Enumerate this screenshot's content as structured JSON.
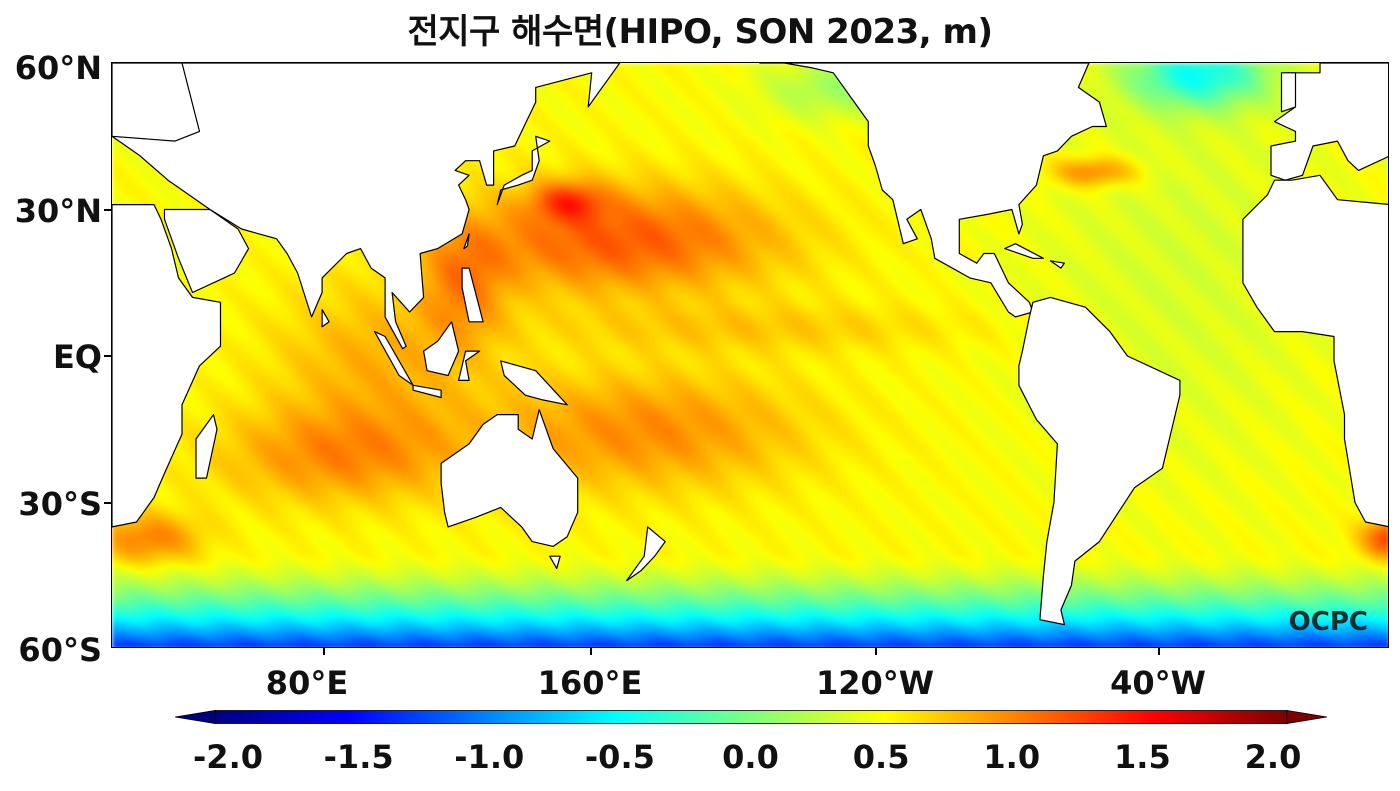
{
  "title": "전지구 해수면(HIPO, SON 2023, m)",
  "map": {
    "variable": "sea level anomaly",
    "units": "m",
    "lon_range": [
      20,
      385
    ],
    "lat_range": [
      -60,
      60
    ],
    "colormap": "jet",
    "extend": "both",
    "color_range": [
      -2.0,
      2.0
    ]
  },
  "axes": {
    "y_ticks": [
      "60°N",
      "30°N",
      "EQ",
      "30°S",
      "60°S"
    ],
    "x_ticks": [
      "80°E",
      "160°E",
      "120°W",
      "40°W"
    ]
  },
  "colorbar": {
    "ticks": [
      "-2.0",
      "-1.5",
      "-1.0",
      "-0.5",
      "0.0",
      "0.5",
      "1.0",
      "1.5",
      "2.0"
    ],
    "colors": [
      "#00007f",
      "#0000ff",
      "#007fff",
      "#00ffff",
      "#7fff7f",
      "#ffff00",
      "#ff7f00",
      "#ff0000",
      "#7f0000"
    ]
  },
  "watermark": "OCPC"
}
